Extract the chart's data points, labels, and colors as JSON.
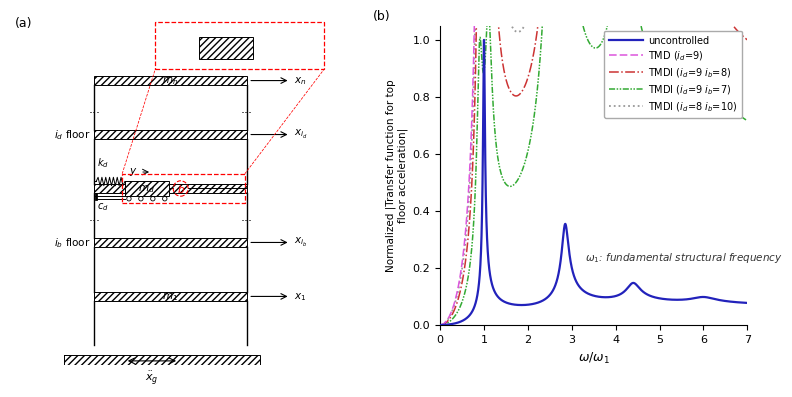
{
  "title_a": "(a)",
  "title_b": "(b)",
  "xlabel": "$\\omega/\\omega_1$",
  "ylabel": "Normalized |Transfer function for top\nfloor acceleration|",
  "xlim": [
    0,
    7
  ],
  "ylim": [
    0,
    1.05
  ],
  "xticks": [
    0,
    1,
    2,
    3,
    4,
    5,
    6,
    7
  ],
  "yticks": [
    0,
    0.2,
    0.4,
    0.6,
    0.8,
    1.0
  ],
  "annotation": "$\\omega_1$: fundamental structural frequency",
  "legend_labels": [
    "uncontrolled",
    "TMD ($i_d$=9)",
    "TMDI ($i_d$=9 $i_b$=8)",
    "TMDI ($i_d$=9 $i_b$=7)",
    "TMDI ($i_d$=8 $i_b$=10)"
  ],
  "line_colors": [
    "#2222bb",
    "#dd55dd",
    "#cc3333",
    "#33aa33",
    "#999999"
  ],
  "bg_color": "#ffffff"
}
